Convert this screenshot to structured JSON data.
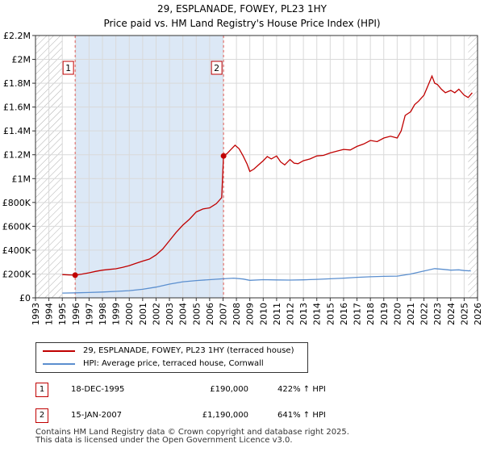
{
  "header": {
    "title_line1": "29, ESPLANADE, FOWEY, PL23 1HY",
    "title_line2": "Price paid vs. HM Land Registry's House Price Index (HPI)"
  },
  "chart_data": {
    "type": "line",
    "title": "29, ESPLANADE, FOWEY, PL23 1HY — Price paid vs. HM Land Registry's House Price Index (HPI)",
    "xlabel": "",
    "ylabel": "",
    "xlim": [
      1993,
      2026
    ],
    "ylim": [
      0,
      2200000
    ],
    "x_ticks": [
      "1993",
      "1994",
      "1995",
      "1996",
      "1997",
      "1998",
      "1999",
      "2000",
      "2001",
      "2002",
      "2003",
      "2004",
      "2005",
      "2006",
      "2007",
      "2008",
      "2009",
      "2010",
      "2011",
      "2012",
      "2013",
      "2014",
      "2015",
      "2016",
      "2017",
      "2018",
      "2019",
      "2020",
      "2021",
      "2022",
      "2023",
      "2024",
      "2025",
      "2026"
    ],
    "y_ticks": [
      {
        "value": 0,
        "label": "£0"
      },
      {
        "value": 200000,
        "label": "£200K"
      },
      {
        "value": 400000,
        "label": "£400K"
      },
      {
        "value": 600000,
        "label": "£600K"
      },
      {
        "value": 800000,
        "label": "£800K"
      },
      {
        "value": 1000000,
        "label": "£1M"
      },
      {
        "value": 1200000,
        "label": "£1.2M"
      },
      {
        "value": 1400000,
        "label": "£1.4M"
      },
      {
        "value": 1600000,
        "label": "£1.6M"
      },
      {
        "value": 1800000,
        "label": "£1.8M"
      },
      {
        "value": 2000000,
        "label": "£2M"
      },
      {
        "value": 2200000,
        "label": "£2.2M"
      }
    ],
    "grid": true,
    "hatched_ranges": [
      [
        1993,
        1995.0
      ],
      [
        2025.3,
        2026
      ]
    ],
    "shaded_range": [
      1995.96,
      2007.04
    ],
    "series": [
      {
        "name": "29, ESPLANADE, FOWEY, PL23 1HY (terraced house)",
        "color": "#c00000",
        "points": [
          [
            1995.0,
            195000
          ],
          [
            1995.5,
            192000
          ],
          [
            1995.96,
            190000
          ],
          [
            1996.5,
            200000
          ],
          [
            1997.0,
            210000
          ],
          [
            1997.5,
            222000
          ],
          [
            1998.0,
            232000
          ],
          [
            1998.5,
            238000
          ],
          [
            1999.0,
            244000
          ],
          [
            1999.5,
            255000
          ],
          [
            2000.0,
            270000
          ],
          [
            2000.5,
            290000
          ],
          [
            2001.0,
            308000
          ],
          [
            2001.5,
            325000
          ],
          [
            2002.0,
            360000
          ],
          [
            2002.5,
            410000
          ],
          [
            2003.0,
            480000
          ],
          [
            2003.5,
            550000
          ],
          [
            2004.0,
            610000
          ],
          [
            2004.5,
            660000
          ],
          [
            2005.0,
            720000
          ],
          [
            2005.5,
            745000
          ],
          [
            2006.0,
            755000
          ],
          [
            2006.5,
            790000
          ],
          [
            2006.9,
            840000
          ],
          [
            2007.04,
            1190000
          ],
          [
            2007.3,
            1210000
          ],
          [
            2007.6,
            1245000
          ],
          [
            2007.9,
            1280000
          ],
          [
            2008.2,
            1250000
          ],
          [
            2008.5,
            1190000
          ],
          [
            2008.8,
            1120000
          ],
          [
            2009.0,
            1060000
          ],
          [
            2009.3,
            1080000
          ],
          [
            2009.6,
            1110000
          ],
          [
            2010.0,
            1150000
          ],
          [
            2010.3,
            1185000
          ],
          [
            2010.6,
            1165000
          ],
          [
            2011.0,
            1190000
          ],
          [
            2011.3,
            1140000
          ],
          [
            2011.6,
            1115000
          ],
          [
            2012.0,
            1160000
          ],
          [
            2012.3,
            1130000
          ],
          [
            2012.6,
            1125000
          ],
          [
            2013.0,
            1150000
          ],
          [
            2013.5,
            1165000
          ],
          [
            2014.0,
            1190000
          ],
          [
            2014.5,
            1195000
          ],
          [
            2015.0,
            1215000
          ],
          [
            2015.5,
            1230000
          ],
          [
            2016.0,
            1245000
          ],
          [
            2016.5,
            1240000
          ],
          [
            2017.0,
            1270000
          ],
          [
            2017.5,
            1290000
          ],
          [
            2018.0,
            1320000
          ],
          [
            2018.5,
            1310000
          ],
          [
            2019.0,
            1340000
          ],
          [
            2019.5,
            1355000
          ],
          [
            2020.0,
            1340000
          ],
          [
            2020.3,
            1400000
          ],
          [
            2020.6,
            1530000
          ],
          [
            2021.0,
            1560000
          ],
          [
            2021.3,
            1620000
          ],
          [
            2021.6,
            1650000
          ],
          [
            2022.0,
            1700000
          ],
          [
            2022.3,
            1780000
          ],
          [
            2022.6,
            1860000
          ],
          [
            2022.8,
            1800000
          ],
          [
            2023.0,
            1790000
          ],
          [
            2023.3,
            1750000
          ],
          [
            2023.6,
            1720000
          ],
          [
            2024.0,
            1740000
          ],
          [
            2024.3,
            1720000
          ],
          [
            2024.6,
            1750000
          ],
          [
            2025.0,
            1700000
          ],
          [
            2025.3,
            1680000
          ],
          [
            2025.6,
            1720000
          ]
        ]
      },
      {
        "name": "HPI: Average price, terraced house, Cornwall",
        "color": "#5b8fcf",
        "points": [
          [
            1995.0,
            40000
          ],
          [
            1996.0,
            42000
          ],
          [
            1997.0,
            45000
          ],
          [
            1998.0,
            49000
          ],
          [
            1999.0,
            54000
          ],
          [
            2000.0,
            60000
          ],
          [
            2001.0,
            72000
          ],
          [
            2002.0,
            90000
          ],
          [
            2003.0,
            115000
          ],
          [
            2004.0,
            135000
          ],
          [
            2005.0,
            145000
          ],
          [
            2006.0,
            152000
          ],
          [
            2007.0,
            160000
          ],
          [
            2007.8,
            165000
          ],
          [
            2008.5,
            158000
          ],
          [
            2009.0,
            147000
          ],
          [
            2010.0,
            152000
          ],
          [
            2011.0,
            150000
          ],
          [
            2012.0,
            149000
          ],
          [
            2013.0,
            151000
          ],
          [
            2014.0,
            155000
          ],
          [
            2015.0,
            160000
          ],
          [
            2016.0,
            165000
          ],
          [
            2017.0,
            172000
          ],
          [
            2018.0,
            177000
          ],
          [
            2019.0,
            180000
          ],
          [
            2020.0,
            182000
          ],
          [
            2021.0,
            200000
          ],
          [
            2022.0,
            225000
          ],
          [
            2022.8,
            245000
          ],
          [
            2023.5,
            238000
          ],
          [
            2024.0,
            232000
          ],
          [
            2024.6,
            235000
          ],
          [
            2025.0,
            229000
          ],
          [
            2025.5,
            226000
          ]
        ]
      }
    ],
    "markers": [
      {
        "id": "1",
        "x": 1995.96,
        "y": 190000
      },
      {
        "id": "2",
        "x": 2007.04,
        "y": 1190000
      }
    ]
  },
  "legend": {
    "items": [
      {
        "label": "29, ESPLANADE, FOWEY, PL23 1HY (terraced house)",
        "color": "#c00000"
      },
      {
        "label": "HPI: Average price, terraced house, Cornwall",
        "color": "#5b8fcf"
      }
    ]
  },
  "transactions": [
    {
      "id": "1",
      "date": "18-DEC-1995",
      "price": "£190,000",
      "hpi": "422% ↑ HPI"
    },
    {
      "id": "2",
      "date": "15-JAN-2007",
      "price": "£1,190,000",
      "hpi": "641% ↑ HPI"
    }
  ],
  "footer": {
    "line1": "Contains HM Land Registry data © Crown copyright and database right 2025.",
    "line2": "This data is licensed under the Open Government Licence v3.0."
  }
}
